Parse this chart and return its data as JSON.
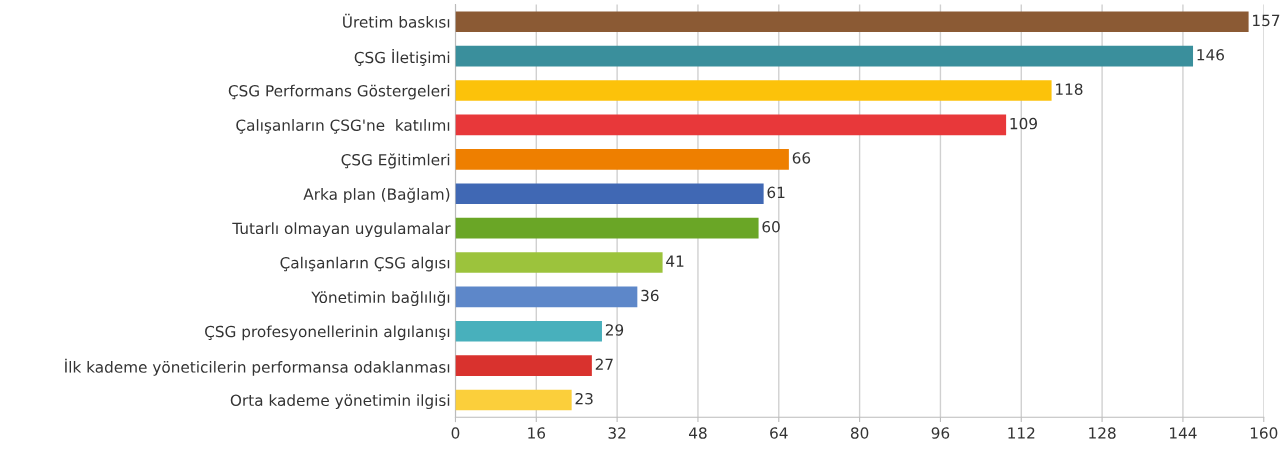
{
  "chart_data": {
    "type": "bar",
    "orientation": "horizontal",
    "categories": [
      "Üretim baskısı",
      "ÇSG İletişimi",
      "ÇSG Performans Göstergeleri",
      "Çalışanların ÇSG'ne  katılımı",
      "ÇSG Eğitimleri",
      "Arka plan (Bağlam)",
      "Tutarlı olmayan uygulamalar",
      "Çalışanların ÇSG algısı",
      "Yönetimin bağlılığı",
      "ÇSG profesyonellerinin algılanışı",
      "İlk kademe yöneticilerin performansa odaklanması",
      "Orta kademe yönetimin ilgisi"
    ],
    "values": [
      157,
      146,
      118,
      109,
      66,
      61,
      60,
      41,
      36,
      29,
      27,
      23
    ],
    "colors": [
      "#8b5a34",
      "#3a8f9c",
      "#fcc20a",
      "#e8383a",
      "#ee7f00",
      "#4068b4",
      "#6aa626",
      "#9cc33c",
      "#5d87c9",
      "#48b0bc",
      "#d9322e",
      "#fbcf3b"
    ],
    "xlim": [
      0,
      160
    ],
    "xticks": [
      0,
      16,
      32,
      48,
      64,
      80,
      96,
      112,
      128,
      144,
      160
    ],
    "grid": "x",
    "data_labels": true
  }
}
